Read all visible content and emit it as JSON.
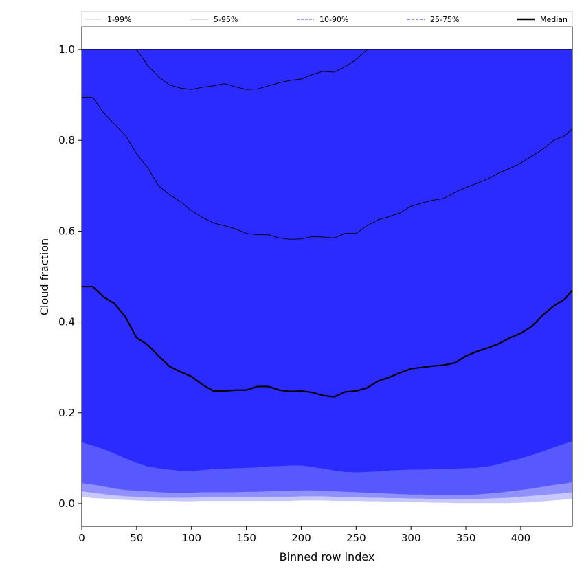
{
  "chart_data": {
    "type": "area",
    "xlabel": "Binned row index",
    "ylabel": "Cloud fraction",
    "xlim": [
      0,
      447
    ],
    "ylim": [
      -0.05,
      1.05
    ],
    "x_ticks": [
      0,
      50,
      100,
      150,
      200,
      250,
      300,
      350,
      400
    ],
    "y_ticks": [
      0.0,
      0.2,
      0.4,
      0.6,
      0.8,
      1.0
    ],
    "grid": false,
    "legend_position": "top",
    "x": [
      0,
      10,
      20,
      30,
      40,
      50,
      60,
      70,
      80,
      90,
      100,
      110,
      120,
      130,
      140,
      150,
      160,
      170,
      180,
      190,
      200,
      210,
      220,
      230,
      240,
      250,
      260,
      270,
      280,
      290,
      300,
      310,
      320,
      330,
      340,
      350,
      360,
      370,
      380,
      390,
      400,
      410,
      420,
      430,
      440,
      447
    ],
    "bands": [
      {
        "name": "1-99%",
        "color": "#c8c8ff",
        "line_color": "#bdbdbd",
        "line_style": "solid",
        "lower": [
          0.015,
          0.012,
          0.011,
          0.009,
          0.008,
          0.007,
          0.006,
          0.006,
          0.006,
          0.005,
          0.005,
          0.006,
          0.006,
          0.006,
          0.006,
          0.006,
          0.006,
          0.006,
          0.006,
          0.006,
          0.007,
          0.007,
          0.007,
          0.006,
          0.006,
          0.006,
          0.005,
          0.005,
          0.004,
          0.004,
          0.003,
          0.003,
          0.002,
          0.002,
          0.001,
          0.001,
          0.001,
          0.001,
          0.001,
          0.001,
          0.002,
          0.003,
          0.005,
          0.007,
          0.009,
          0.01
        ],
        "upper": [
          1.0,
          1.0,
          1.0,
          1.0,
          1.0,
          1.0,
          1.0,
          1.0,
          1.0,
          1.0,
          1.0,
          1.0,
          1.0,
          1.0,
          1.0,
          1.0,
          1.0,
          1.0,
          1.0,
          1.0,
          1.0,
          1.0,
          1.0,
          1.0,
          1.0,
          1.0,
          1.0,
          1.0,
          1.0,
          1.0,
          1.0,
          1.0,
          1.0,
          1.0,
          1.0,
          1.0,
          1.0,
          1.0,
          1.0,
          1.0,
          1.0,
          1.0,
          1.0,
          1.0,
          1.0,
          1.0
        ]
      },
      {
        "name": "5-95%",
        "color": "#9090ff",
        "line_color": "#9a9ac8",
        "line_style": "solid",
        "lower": [
          0.027,
          0.024,
          0.021,
          0.018,
          0.016,
          0.015,
          0.014,
          0.013,
          0.013,
          0.013,
          0.013,
          0.014,
          0.014,
          0.014,
          0.014,
          0.014,
          0.014,
          0.015,
          0.015,
          0.015,
          0.016,
          0.016,
          0.016,
          0.015,
          0.014,
          0.014,
          0.013,
          0.013,
          0.012,
          0.012,
          0.011,
          0.011,
          0.01,
          0.01,
          0.01,
          0.01,
          0.01,
          0.011,
          0.012,
          0.013,
          0.015,
          0.017,
          0.019,
          0.021,
          0.023,
          0.025
        ],
        "upper": [
          1.0,
          1.0,
          1.0,
          1.0,
          1.0,
          1.0,
          0.965,
          0.94,
          0.922,
          0.915,
          0.912,
          0.917,
          0.92,
          0.925,
          0.918,
          0.912,
          0.913,
          0.92,
          0.927,
          0.932,
          0.935,
          0.945,
          0.952,
          0.95,
          0.962,
          0.978,
          1.0,
          1.0,
          1.0,
          1.0,
          1.0,
          1.0,
          1.0,
          1.0,
          1.0,
          1.0,
          1.0,
          1.0,
          1.0,
          1.0,
          1.0,
          1.0,
          1.0,
          1.0,
          1.0,
          1.0
        ]
      },
      {
        "name": "10-90%",
        "color": "#5858ff",
        "line_color": "#8080ff",
        "line_style": "dashed",
        "lower": [
          0.045,
          0.042,
          0.038,
          0.033,
          0.03,
          0.028,
          0.027,
          0.025,
          0.024,
          0.024,
          0.024,
          0.025,
          0.025,
          0.025,
          0.025,
          0.026,
          0.026,
          0.027,
          0.028,
          0.028,
          0.029,
          0.029,
          0.028,
          0.027,
          0.026,
          0.025,
          0.024,
          0.023,
          0.022,
          0.021,
          0.02,
          0.02,
          0.019,
          0.019,
          0.019,
          0.019,
          0.02,
          0.022,
          0.024,
          0.027,
          0.03,
          0.033,
          0.037,
          0.041,
          0.044,
          0.047
        ],
        "upper": [
          0.895,
          0.895,
          0.86,
          0.835,
          0.81,
          0.77,
          0.74,
          0.7,
          0.68,
          0.665,
          0.645,
          0.63,
          0.618,
          0.612,
          0.605,
          0.595,
          0.592,
          0.592,
          0.585,
          0.582,
          0.583,
          0.588,
          0.587,
          0.585,
          0.595,
          0.595,
          0.612,
          0.625,
          0.632,
          0.64,
          0.655,
          0.662,
          0.668,
          0.672,
          0.685,
          0.696,
          0.705,
          0.715,
          0.728,
          0.738,
          0.75,
          0.765,
          0.78,
          0.8,
          0.81,
          0.825
        ]
      },
      {
        "name": "25-75%",
        "color": "#2b2bff",
        "line_color": "#6464ff",
        "line_style": "dashed",
        "lower": [
          0.135,
          0.128,
          0.12,
          0.11,
          0.1,
          0.09,
          0.082,
          0.078,
          0.075,
          0.072,
          0.072,
          0.074,
          0.076,
          0.077,
          0.078,
          0.079,
          0.08,
          0.082,
          0.083,
          0.084,
          0.084,
          0.081,
          0.077,
          0.073,
          0.07,
          0.069,
          0.07,
          0.071,
          0.073,
          0.074,
          0.075,
          0.075,
          0.076,
          0.077,
          0.077,
          0.078,
          0.079,
          0.082,
          0.087,
          0.094,
          0.1,
          0.107,
          0.115,
          0.124,
          0.132,
          0.138
        ],
        "upper": [
          1.0,
          1.0,
          1.0,
          1.0,
          1.0,
          1.0,
          1.0,
          1.0,
          1.0,
          1.0,
          1.0,
          1.0,
          1.0,
          1.0,
          1.0,
          1.0,
          1.0,
          1.0,
          1.0,
          1.0,
          1.0,
          1.0,
          1.0,
          1.0,
          1.0,
          1.0,
          1.0,
          1.0,
          1.0,
          1.0,
          1.0,
          1.0,
          1.0,
          1.0,
          1.0,
          1.0,
          1.0,
          1.0,
          1.0,
          1.0,
          1.0,
          1.0,
          1.0,
          1.0,
          1.0,
          1.0
        ]
      }
    ],
    "inner_band": {
      "color": "#2b2bff",
      "lower": [
        0.135,
        0.128,
        0.12,
        0.11,
        0.1,
        0.09,
        0.082,
        0.078,
        0.075,
        0.072,
        0.072,
        0.074,
        0.076,
        0.077,
        0.078,
        0.079,
        0.08,
        0.082,
        0.083,
        0.084,
        0.084,
        0.081,
        0.077,
        0.073,
        0.07,
        0.069,
        0.07,
        0.071,
        0.073,
        0.074,
        0.075,
        0.075,
        0.076,
        0.077,
        0.077,
        0.078,
        0.079,
        0.082,
        0.087,
        0.094,
        0.1,
        0.107,
        0.115,
        0.124,
        0.132,
        0.138
      ],
      "upper": [
        0.895,
        0.895,
        0.86,
        0.835,
        0.81,
        0.77,
        0.74,
        0.7,
        0.68,
        0.665,
        0.645,
        0.63,
        0.618,
        0.612,
        0.605,
        0.595,
        0.592,
        0.592,
        0.585,
        0.582,
        0.583,
        0.588,
        0.587,
        0.585,
        0.595,
        0.595,
        0.612,
        0.625,
        0.632,
        0.64,
        0.655,
        0.662,
        0.668,
        0.672,
        0.685,
        0.696,
        0.705,
        0.715,
        0.728,
        0.738,
        0.75,
        0.765,
        0.78,
        0.8,
        0.81,
        0.825
      ]
    },
    "median": {
      "name": "Median",
      "color": "#000000",
      "values": [
        0.478,
        0.478,
        0.455,
        0.44,
        0.41,
        0.365,
        0.35,
        0.325,
        0.302,
        0.29,
        0.28,
        0.262,
        0.248,
        0.248,
        0.25,
        0.25,
        0.258,
        0.258,
        0.25,
        0.247,
        0.248,
        0.245,
        0.238,
        0.235,
        0.246,
        0.248,
        0.255,
        0.27,
        0.278,
        0.288,
        0.297,
        0.3,
        0.303,
        0.305,
        0.31,
        0.325,
        0.335,
        0.343,
        0.352,
        0.365,
        0.375,
        0.39,
        0.415,
        0.435,
        0.45,
        0.47
      ]
    }
  },
  "legend": {
    "items": [
      {
        "label": "1-99%",
        "color": "#bdbdbd",
        "dash": "none",
        "width": 0.8
      },
      {
        "label": "5-95%",
        "color": "#9a9ac8",
        "dash": "none",
        "width": 0.8
      },
      {
        "label": "10-90%",
        "color": "#8080ff",
        "dash": "4,2",
        "width": 1.5
      },
      {
        "label": "25-75%",
        "color": "#6464ff",
        "dash": "4,2",
        "width": 1.5
      },
      {
        "label": "Median",
        "color": "#000000",
        "dash": "none",
        "width": 2.5
      }
    ]
  }
}
